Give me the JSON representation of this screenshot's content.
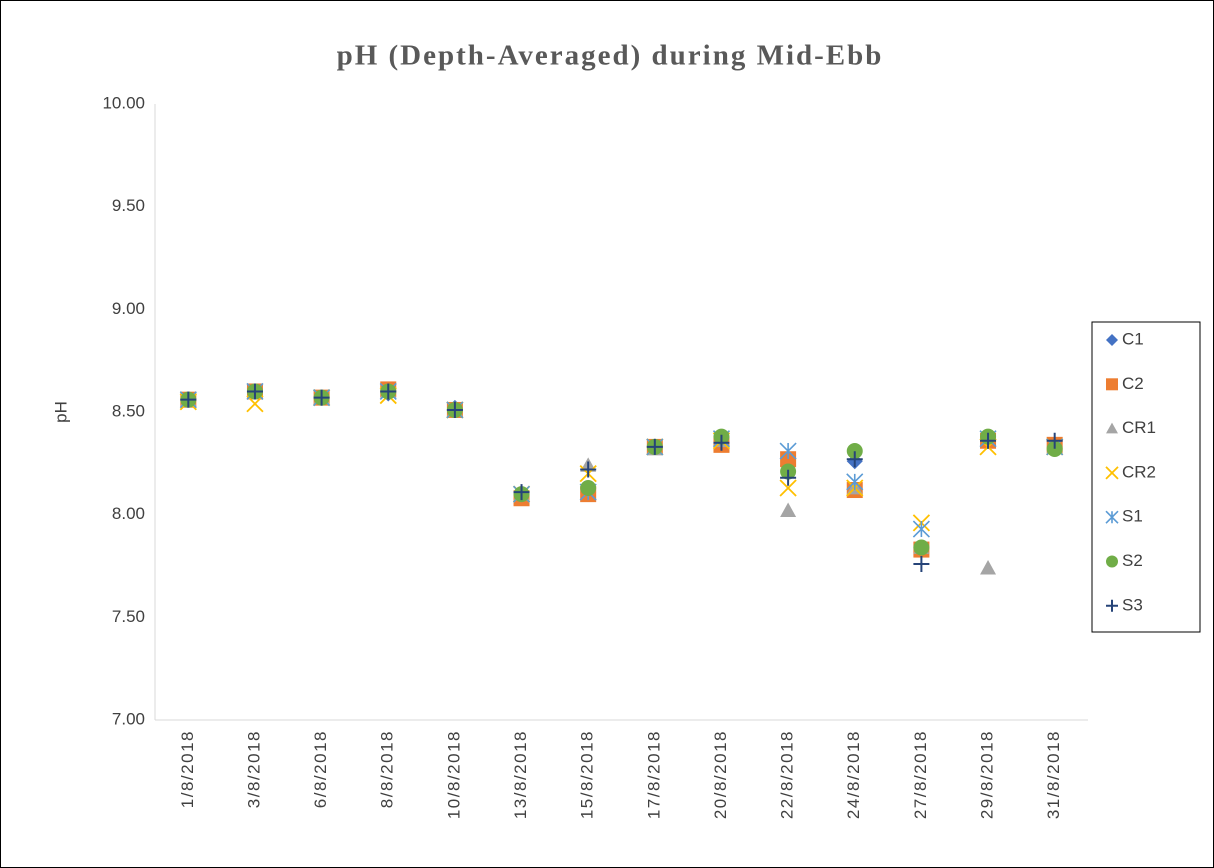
{
  "chart_data": {
    "type": "scatter",
    "title": "pH (Depth-Averaged) during Mid-Ebb",
    "y_label": "pH",
    "categories": [
      "1/8/2018",
      "3/8/2018",
      "6/8/2018",
      "8/8/2018",
      "10/8/2018",
      "13/8/2018",
      "15/8/2018",
      "17/8/2018",
      "20/8/2018",
      "22/8/2018",
      "24/8/2018",
      "27/8/2018",
      "29/8/2018",
      "31/8/2018"
    ],
    "series": [
      {
        "name": "C1",
        "color": "#4472c4",
        "marker": "diamond",
        "values": [
          8.56,
          8.6,
          8.57,
          8.59,
          8.52,
          8.1,
          8.11,
          8.33,
          8.36,
          8.24,
          8.26,
          7.84,
          8.36,
          8.33
        ]
      },
      {
        "name": "C2",
        "color": "#ed7d31",
        "marker": "square",
        "values": [
          8.56,
          8.6,
          8.57,
          8.61,
          8.51,
          8.08,
          8.1,
          8.33,
          8.34,
          8.27,
          8.12,
          7.83,
          8.36,
          8.34
        ]
      },
      {
        "name": "CR1",
        "color": "#a5a5a5",
        "marker": "triangle",
        "values": [
          8.56,
          8.6,
          8.57,
          8.6,
          8.51,
          8.1,
          8.24,
          8.32,
          8.36,
          8.02,
          8.13,
          7.84,
          7.74,
          8.33
        ]
      },
      {
        "name": "CR2",
        "color": "#ffc000",
        "marker": "x",
        "values": [
          8.55,
          8.54,
          8.57,
          8.58,
          8.51,
          8.1,
          8.2,
          8.33,
          8.36,
          8.13,
          8.13,
          7.96,
          8.33,
          8.33
        ]
      },
      {
        "name": "S1",
        "color": "#5b9bd5",
        "marker": "asterisk",
        "values": [
          8.56,
          8.6,
          8.57,
          8.6,
          8.51,
          8.1,
          8.11,
          8.33,
          8.37,
          8.31,
          8.16,
          7.93,
          8.37,
          8.33
        ]
      },
      {
        "name": "S2",
        "color": "#70ad47",
        "marker": "circle",
        "values": [
          8.56,
          8.6,
          8.57,
          8.6,
          8.51,
          8.1,
          8.13,
          8.33,
          8.38,
          8.21,
          8.31,
          7.84,
          8.38,
          8.32
        ]
      },
      {
        "name": "S3",
        "color": "#264478",
        "marker": "plus",
        "values": [
          8.56,
          8.6,
          8.57,
          8.6,
          8.51,
          8.11,
          8.22,
          8.33,
          8.35,
          8.18,
          8.27,
          7.76,
          8.36,
          8.36
        ]
      }
    ],
    "ylim": [
      7,
      10
    ],
    "yticks": [
      {
        "value": 7,
        "label": "7.00"
      },
      {
        "value": 7.5,
        "label": "7.50"
      },
      {
        "value": 8,
        "label": "8.00"
      },
      {
        "value": 8.5,
        "label": "8.50"
      },
      {
        "value": 9,
        "label": "9.00"
      },
      {
        "value": 9.5,
        "label": "9.50"
      },
      {
        "value": 10,
        "label": "10.00"
      }
    ],
    "grid": false,
    "legend": "right"
  }
}
